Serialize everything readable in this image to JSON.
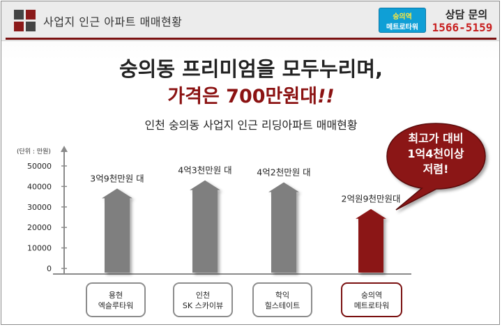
{
  "header": {
    "title": "사업지 인근 아파트 매매현황",
    "logo_colors": [
      "#444444",
      "#8b1a1a",
      "#8b1a1a",
      "#444444"
    ],
    "brand_badge": {
      "line1": "숭의역",
      "line2": "메트로타워"
    },
    "contact_label": "상담 문의",
    "contact_phone": "1566-5159"
  },
  "headline": {
    "line1": "숭의동 프리미엄을 모두누리며,",
    "line2": "가격은 700만원대",
    "line2_suffix": "!!"
  },
  "callout": {
    "line1": "최고가 대비",
    "line2": "1억4천이상",
    "line3": "저렴!"
  },
  "colors": {
    "accent": "#8b1212",
    "bar_gray": "#7f7f7f",
    "bar_highlight": "#8b1212"
  },
  "chart_data": {
    "type": "bar",
    "title": "인천 숭의동 사업지 인근 리딩아파트 매매현황",
    "unit_label": "(단위 : 만원)",
    "ylim": [
      0,
      50000
    ],
    "yticks": [
      0,
      10000,
      20000,
      30000,
      40000,
      50000
    ],
    "categories": [
      {
        "line1": "용현",
        "line2": "엑슬루타워"
      },
      {
        "line1": "인천",
        "line2": "SK 스카이뷰"
      },
      {
        "line1": "학익",
        "line2": "힐스테이트"
      },
      {
        "line1": "숭의역",
        "line2": "메트로타워"
      }
    ],
    "values": [
      39000,
      43000,
      42000,
      29000
    ],
    "data_labels": [
      "3억9천만원 대",
      "4억3천만원 대",
      "4억2천만원 대",
      "2억원9천만원대"
    ],
    "highlight_index": 3,
    "grid": false
  }
}
